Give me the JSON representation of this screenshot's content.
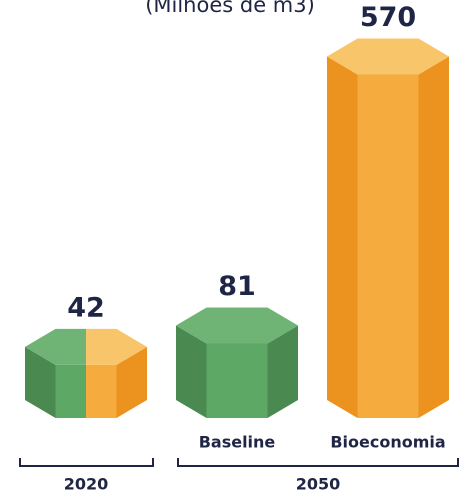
{
  "chart_data": {
    "type": "hexbar",
    "title": "(Milhões de m3)",
    "categories": [
      null,
      "Baseline",
      "Bioeconomia"
    ],
    "values": [
      42,
      81,
      570
    ],
    "bar_colors": [
      [
        "green",
        "orange"
      ],
      [
        "green"
      ],
      [
        "orange"
      ]
    ],
    "groups": [
      "2020",
      "2050"
    ]
  }
}
